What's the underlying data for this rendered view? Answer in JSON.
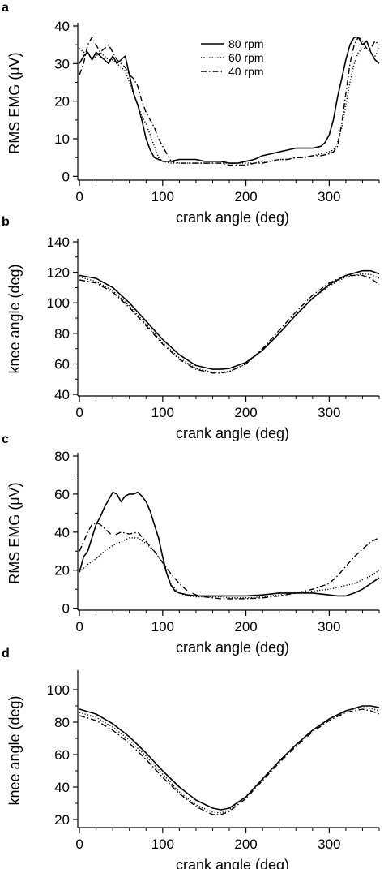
{
  "chart_data": [
    {
      "type": "line",
      "panel_label": "a",
      "xlabel": "crank angle (deg)",
      "ylabel": "RMS EMG (μV)",
      "xlim": [
        -2,
        360
      ],
      "ylim": [
        -1,
        40
      ],
      "xticks": [
        0,
        100,
        200,
        300
      ],
      "yticks": [
        0,
        10,
        20,
        30,
        40
      ],
      "legend": {
        "placement": "top-center",
        "entries": [
          "80 rpm",
          "60 rpm",
          "40 rpm"
        ]
      },
      "series": [
        {
          "name": "80 rpm",
          "style": "solid",
          "x": [
            0,
            5,
            10,
            15,
            20,
            25,
            30,
            35,
            40,
            45,
            50,
            55,
            60,
            65,
            70,
            75,
            80,
            85,
            90,
            95,
            100,
            110,
            120,
            130,
            140,
            150,
            160,
            170,
            180,
            190,
            200,
            210,
            220,
            230,
            240,
            250,
            260,
            270,
            280,
            290,
            295,
            300,
            305,
            310,
            315,
            320,
            325,
            330,
            335,
            340,
            345,
            350,
            355,
            360
          ],
          "y": [
            30,
            32,
            33,
            31,
            33,
            32,
            31,
            30,
            32,
            30,
            31,
            32,
            27,
            22,
            19,
            15,
            10,
            7,
            5,
            4.5,
            4,
            4,
            4.5,
            4.5,
            4.5,
            4,
            4,
            4,
            3.5,
            3.5,
            4,
            4.5,
            5.5,
            6,
            6.5,
            7,
            7.5,
            7.5,
            7.5,
            8,
            9,
            11,
            15,
            21,
            26,
            31,
            35,
            37,
            37,
            35,
            36,
            33,
            31,
            30
          ]
        },
        {
          "name": "60 rpm",
          "style": "dotted",
          "x": [
            0,
            5,
            10,
            15,
            20,
            25,
            30,
            35,
            40,
            45,
            50,
            55,
            60,
            65,
            70,
            75,
            80,
            85,
            90,
            95,
            100,
            110,
            120,
            130,
            140,
            150,
            160,
            170,
            180,
            190,
            200,
            210,
            220,
            230,
            240,
            250,
            260,
            270,
            280,
            290,
            300,
            305,
            310,
            315,
            320,
            325,
            330,
            335,
            340,
            345,
            350,
            355,
            360
          ],
          "y": [
            34,
            33,
            33,
            31,
            32,
            33,
            32,
            31,
            31,
            30,
            29,
            28,
            25,
            22,
            19,
            16,
            14,
            11,
            8,
            5,
            4,
            3.5,
            3.5,
            3.5,
            3.5,
            3.5,
            3.5,
            3.5,
            3.5,
            3.5,
            3.5,
            3.5,
            4,
            4,
            4.5,
            4.5,
            5,
            5,
            5.5,
            6,
            6.5,
            7,
            9,
            13,
            19,
            25,
            30,
            33,
            34,
            34,
            33,
            32,
            34
          ]
        },
        {
          "name": "40 rpm",
          "style": "dashdot",
          "x": [
            0,
            5,
            10,
            15,
            20,
            25,
            30,
            35,
            40,
            45,
            50,
            55,
            60,
            65,
            70,
            75,
            80,
            85,
            90,
            95,
            100,
            105,
            110,
            120,
            130,
            140,
            150,
            160,
            170,
            180,
            190,
            200,
            210,
            220,
            230,
            240,
            250,
            260,
            270,
            280,
            290,
            300,
            305,
            310,
            315,
            320,
            325,
            330,
            335,
            340,
            345,
            350,
            355,
            360
          ],
          "y": [
            27,
            30,
            35,
            37,
            35,
            33,
            34,
            35,
            33,
            31,
            30,
            29,
            27,
            26,
            24,
            20,
            17,
            15,
            13,
            10,
            8,
            6,
            4,
            3.5,
            3.5,
            3.5,
            3.5,
            3.5,
            3.5,
            3,
            3,
            3,
            3.5,
            3.5,
            4,
            4.5,
            4.5,
            5,
            5,
            5.5,
            5.5,
            6,
            6.5,
            8,
            14,
            22,
            30,
            35,
            37,
            36,
            34,
            34,
            36,
            35
          ]
        }
      ]
    },
    {
      "type": "line",
      "panel_label": "b",
      "xlabel": "crank angle (deg)",
      "ylabel": "knee angle (deg)",
      "xlim": [
        -2,
        360
      ],
      "ylim": [
        39,
        140
      ],
      "xticks": [
        0,
        100,
        200,
        300
      ],
      "yticks": [
        40,
        60,
        80,
        100,
        120,
        140
      ],
      "series": [
        {
          "name": "80 rpm",
          "style": "solid",
          "x": [
            0,
            20,
            40,
            60,
            80,
            100,
            120,
            140,
            160,
            170,
            180,
            200,
            220,
            240,
            260,
            280,
            300,
            320,
            340,
            350,
            360
          ],
          "y": [
            118,
            116,
            110,
            100,
            88,
            76,
            66,
            59,
            56.5,
            56.5,
            57,
            61,
            69,
            80,
            92,
            103,
            112,
            118,
            121,
            121,
            119
          ]
        },
        {
          "name": "60 rpm",
          "style": "dotted",
          "x": [
            0,
            20,
            40,
            60,
            80,
            100,
            120,
            140,
            160,
            170,
            180,
            200,
            220,
            240,
            260,
            280,
            300,
            320,
            340,
            350,
            360
          ],
          "y": [
            117,
            114,
            108,
            98,
            86,
            74,
            64,
            57,
            54.5,
            54.5,
            55,
            60,
            69,
            80,
            92,
            103,
            111,
            117,
            119,
            118.5,
            116
          ]
        },
        {
          "name": "40 rpm",
          "style": "dashdot",
          "x": [
            0,
            20,
            40,
            60,
            80,
            100,
            120,
            140,
            160,
            170,
            180,
            200,
            220,
            240,
            260,
            280,
            300,
            320,
            340,
            350,
            360
          ],
          "y": [
            115,
            113,
            107,
            97,
            85,
            73,
            63,
            56.5,
            54,
            54,
            55,
            60,
            70,
            82,
            94,
            105,
            113,
            118,
            118,
            116,
            112
          ]
        }
      ]
    },
    {
      "type": "line",
      "panel_label": "c",
      "xlabel": "crank angle (deg)",
      "ylabel": "RMS EMG (μV)",
      "xlim": [
        -2,
        360
      ],
      "ylim": [
        -1,
        80
      ],
      "xticks": [
        0,
        100,
        200,
        300
      ],
      "yticks": [
        0,
        20,
        40,
        60,
        80
      ],
      "series": [
        {
          "name": "80 rpm",
          "style": "solid",
          "x": [
            0,
            5,
            10,
            15,
            20,
            25,
            30,
            35,
            40,
            45,
            50,
            55,
            60,
            65,
            70,
            75,
            80,
            85,
            90,
            95,
            100,
            105,
            110,
            115,
            120,
            130,
            140,
            150,
            160,
            170,
            180,
            190,
            200,
            220,
            240,
            260,
            280,
            300,
            310,
            320,
            330,
            340,
            350,
            360
          ],
          "y": [
            19,
            27,
            30,
            37,
            44,
            48,
            53,
            57,
            61,
            60,
            56,
            59,
            60,
            60,
            61,
            59,
            56,
            51,
            44,
            37,
            27,
            18,
            12,
            9,
            8,
            7,
            6.5,
            6.5,
            6.5,
            6.5,
            6.5,
            6.5,
            6.5,
            7,
            8,
            8,
            8,
            7,
            6.5,
            6.5,
            8,
            10,
            13,
            16
          ]
        },
        {
          "name": "60 rpm",
          "style": "dotted",
          "x": [
            0,
            10,
            20,
            30,
            40,
            50,
            60,
            70,
            80,
            90,
            100,
            105,
            110,
            115,
            120,
            130,
            140,
            150,
            160,
            170,
            180,
            190,
            200,
            220,
            240,
            260,
            280,
            300,
            310,
            320,
            330,
            340,
            350,
            360
          ],
          "y": [
            19,
            23,
            26,
            30,
            33,
            35,
            37,
            37,
            34,
            30,
            24,
            18,
            13,
            10,
            8,
            6.5,
            6,
            6,
            6,
            6,
            5.5,
            5.5,
            5.5,
            6,
            7,
            8,
            9,
            10,
            11,
            12,
            13,
            15,
            17,
            20
          ]
        },
        {
          "name": "40 rpm",
          "style": "dashdot",
          "x": [
            0,
            5,
            10,
            15,
            20,
            25,
            30,
            35,
            40,
            50,
            60,
            70,
            80,
            90,
            100,
            110,
            120,
            130,
            140,
            150,
            160,
            170,
            180,
            190,
            200,
            220,
            240,
            260,
            280,
            300,
            310,
            320,
            330,
            340,
            350,
            360
          ],
          "y": [
            30,
            35,
            40,
            44,
            45,
            44,
            42,
            40,
            38,
            40,
            39,
            40,
            35,
            30,
            24,
            18,
            13,
            9,
            7,
            6,
            5.5,
            5,
            5,
            5,
            5,
            5.5,
            6.5,
            8,
            10,
            13,
            17,
            22,
            27,
            31,
            35,
            37
          ]
        }
      ]
    },
    {
      "type": "line",
      "panel_label": "d",
      "xlabel": "crank angle (deg)",
      "ylabel": "knee angle (deg)",
      "xlim": [
        -2,
        360
      ],
      "ylim": [
        15,
        110
      ],
      "xticks": [
        0,
        100,
        200,
        300
      ],
      "yticks": [
        20,
        40,
        60,
        80,
        100
      ],
      "series": [
        {
          "name": "80 rpm",
          "style": "solid",
          "x": [
            0,
            20,
            40,
            60,
            80,
            100,
            120,
            140,
            160,
            170,
            180,
            200,
            220,
            240,
            260,
            280,
            300,
            320,
            340,
            350,
            360
          ],
          "y": [
            88,
            85,
            79,
            71,
            61,
            50,
            40,
            32,
            27,
            26,
            27,
            34,
            45,
            56,
            66,
            75,
            82,
            87,
            90,
            90,
            89
          ]
        },
        {
          "name": "60 rpm",
          "style": "dotted",
          "x": [
            0,
            20,
            40,
            60,
            80,
            100,
            120,
            140,
            160,
            170,
            180,
            200,
            220,
            240,
            260,
            280,
            300,
            320,
            340,
            350,
            360
          ],
          "y": [
            86,
            83,
            77,
            69,
            59,
            48,
            37,
            29,
            24.5,
            24,
            26,
            34,
            45,
            56,
            66,
            75,
            82,
            87,
            89,
            88.5,
            87
          ]
        },
        {
          "name": "40 rpm",
          "style": "dashdot",
          "x": [
            0,
            20,
            40,
            60,
            80,
            100,
            120,
            140,
            160,
            170,
            180,
            200,
            220,
            240,
            260,
            280,
            300,
            320,
            340,
            350,
            360
          ],
          "y": [
            84,
            81,
            75,
            67,
            57,
            46,
            36,
            28,
            23,
            23,
            25,
            33,
            44,
            55,
            65,
            74,
            81,
            86,
            88,
            87,
            85
          ]
        }
      ]
    }
  ]
}
